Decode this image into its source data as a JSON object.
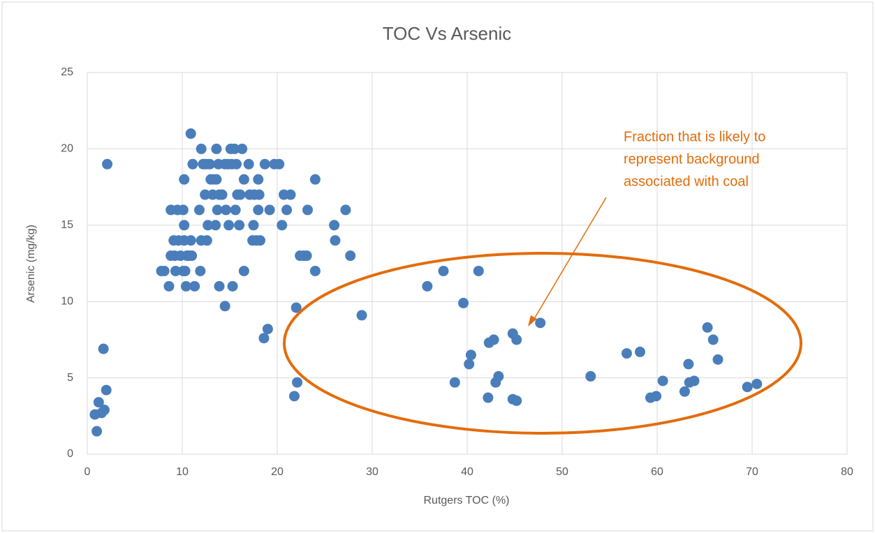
{
  "chart_data": {
    "type": "scatter",
    "title": "TOC Vs Arsenic",
    "x_label": "Rutgers TOC (%)",
    "y_label": "Arsenic (mg/kg)",
    "annotation": [
      "Fraction that is likely to",
      "represent background",
      "associated with coal"
    ],
    "color": "#4a7ebb",
    "annotation_color": "#e36c0a",
    "xlim": [
      0,
      80
    ],
    "xticks": [
      0,
      10,
      20,
      30,
      40,
      50,
      60,
      70,
      80
    ],
    "ylim": [
      0,
      25
    ],
    "yticks": [
      0,
      5,
      10,
      15,
      20,
      25
    ],
    "grid": true,
    "x": [
      0.8,
      1.2,
      1.0,
      1.5,
      1.8,
      1.7,
      2.0,
      2.1,
      7.8,
      8.1,
      8.6,
      8.8,
      8.8,
      9.1,
      9.2,
      9.3,
      9.5,
      9.6,
      9.8,
      10.1,
      10.1,
      10.2,
      10.2,
      10.2,
      10.3,
      10.4,
      10.5,
      10.7,
      10.9,
      10.9,
      11.0,
      11.1,
      11.3,
      11.8,
      11.9,
      12.0,
      12.0,
      12.2,
      12.4,
      12.5,
      12.6,
      12.7,
      12.9,
      13.0,
      13.2,
      13.3,
      13.5,
      13.6,
      13.6,
      13.7,
      13.8,
      13.9,
      13.9,
      14.2,
      14.5,
      14.5,
      14.6,
      14.8,
      14.9,
      15.1,
      15.2,
      15.3,
      15.5,
      15.6,
      15.7,
      15.8,
      16.0,
      16.1,
      16.3,
      16.5,
      16.5,
      17.0,
      17.1,
      17.4,
      17.5,
      17.6,
      17.8,
      18.0,
      18.0,
      18.1,
      18.2,
      18.6,
      18.7,
      19.0,
      19.2,
      19.7,
      20.2,
      20.5,
      20.7,
      21.0,
      21.4,
      21.8,
      22.0,
      22.1,
      22.4,
      22.8,
      23.1,
      23.2,
      24.0,
      24.0,
      26.0,
      26.1,
      27.2,
      27.7,
      28.9,
      35.8,
      37.5,
      38.7,
      39.6,
      40.2,
      40.4,
      41.2,
      42.2,
      42.3,
      42.8,
      43.0,
      43.3,
      44.8,
      44.8,
      45.2,
      45.2,
      47.7,
      53.0,
      56.8,
      58.2,
      59.3,
      59.9,
      60.6,
      62.9,
      63.3,
      63.4,
      63.9,
      65.3,
      65.9,
      66.4,
      69.5,
      70.5
    ],
    "values": [
      2.6,
      3.4,
      1.5,
      2.7,
      2.9,
      6.9,
      4.2,
      19,
      12,
      12,
      11,
      16,
      13,
      14,
      13,
      12,
      16,
      14,
      13,
      16,
      12,
      15,
      14,
      18,
      12,
      11,
      13,
      13,
      14,
      21,
      13,
      19,
      11,
      16,
      12,
      20,
      14,
      19,
      17,
      19,
      14,
      15,
      19,
      18,
      17,
      18,
      15,
      20,
      18,
      16,
      19,
      11,
      17,
      17,
      9.7,
      19,
      16,
      19,
      15,
      20,
      19,
      11,
      20,
      16,
      19,
      17,
      15,
      17,
      20,
      18,
      12,
      19,
      17,
      14,
      15,
      17,
      14,
      18,
      16,
      17,
      14,
      7.6,
      19,
      8.2,
      16,
      19,
      19,
      15,
      17,
      16,
      17,
      3.8,
      9.6,
      4.7,
      13,
      13,
      13,
      16,
      18,
      12,
      15,
      14,
      16,
      13,
      9.1,
      11,
      12,
      4.7,
      9.9,
      5.9,
      6.5,
      12,
      3.7,
      7.3,
      7.5,
      4.7,
      5.1,
      7.9,
      3.6,
      3.5,
      7.5,
      8.6,
      5.1,
      6.6,
      6.7,
      3.7,
      3.8,
      4.8,
      4.1,
      5.9,
      4.7,
      4.8,
      8.3,
      7.5,
      6.2,
      4.4,
      4.6
    ]
  }
}
